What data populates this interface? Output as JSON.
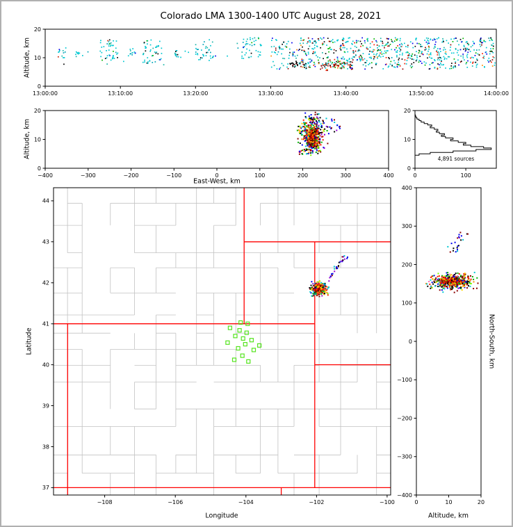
{
  "title": "Colorado LMA 1300-1400 UTC August 28, 2021",
  "labels": {
    "altitude_axis": "Altitude, km",
    "east_west_axis": "East-West, km",
    "latitude_axis": "Latitude",
    "longitude_axis": "Longitude",
    "north_south_axis": "North-South, km",
    "sources_count": "4,891 sources"
  },
  "colors": {
    "state_border": "#ff0000",
    "county_border": "#c2c2c2",
    "station": "#55e41e",
    "axis_frame": "#000000",
    "hist_line": "#000000",
    "background": "#ffffff",
    "figure_border": "#b0b0b0"
  },
  "palettes": {
    "time_early": [
      [
        "#00c8d2",
        0.6
      ],
      [
        "#00a4b8",
        0.14
      ],
      [
        "#19b5a8",
        0.1
      ],
      [
        "#000000",
        0.06
      ],
      [
        "#0000ee",
        0.04
      ],
      [
        "#00b400",
        0.04
      ],
      [
        "#cc2200",
        0.02
      ]
    ],
    "time_late": [
      [
        "#00c8d2",
        0.46
      ],
      [
        "#19b5a8",
        0.1
      ],
      [
        "#000000",
        0.13
      ],
      [
        "#ff1e00",
        0.07
      ],
      [
        "#8b0000",
        0.05
      ],
      [
        "#0000ee",
        0.07
      ],
      [
        "#00b400",
        0.08
      ],
      [
        "#ff8c00",
        0.04
      ]
    ],
    "time_hot": [
      [
        "#8b0000",
        0.3
      ],
      [
        "#ff1e00",
        0.26
      ],
      [
        "#000000",
        0.18
      ],
      [
        "#ff8c00",
        0.1
      ],
      [
        "#00c8d2",
        0.09
      ],
      [
        "#00b400",
        0.07
      ]
    ],
    "dark_mix": [
      [
        "#000000",
        0.62
      ],
      [
        "#8b0000",
        0.18
      ],
      [
        "#00c8d2",
        0.2
      ]
    ],
    "storm": [
      [
        "#ff1e00",
        0.13
      ],
      [
        "#8b0000",
        0.11
      ],
      [
        "#000000",
        0.14
      ],
      [
        "#00b400",
        0.13
      ],
      [
        "#7cfc00",
        0.04
      ],
      [
        "#ffd700",
        0.07
      ],
      [
        "#ff8c00",
        0.07
      ],
      [
        "#00c8d2",
        0.13
      ],
      [
        "#0000ee",
        0.11
      ],
      [
        "#9400d3",
        0.04
      ],
      [
        "#ff69b4",
        0.03
      ]
    ],
    "storm_core": [
      [
        "#8b0000",
        0.3
      ],
      [
        "#ff1e00",
        0.28
      ],
      [
        "#000000",
        0.13
      ],
      [
        "#ff8c00",
        0.11
      ],
      [
        "#ffd700",
        0.08
      ],
      [
        "#00b400",
        0.06
      ],
      [
        "#0000ee",
        0.04
      ]
    ],
    "streak": [
      [
        "#0000ee",
        0.34
      ],
      [
        "#000000",
        0.2
      ],
      [
        "#00c8d2",
        0.2
      ],
      [
        "#9400d3",
        0.16
      ],
      [
        "#8b0000",
        0.1
      ]
    ]
  },
  "chart_data": [
    {
      "id": "time_height",
      "type": "scatter",
      "seed": 11,
      "xlabel": "",
      "ylabel": "Altitude, km",
      "xlim": [
        0,
        3600
      ],
      "ylim": [
        0,
        20
      ],
      "xticks": [
        {
          "v": 0,
          "l": "13:00:00"
        },
        {
          "v": 600,
          "l": "13:10:00"
        },
        {
          "v": 1200,
          "l": "13:20:00"
        },
        {
          "v": 1800,
          "l": "13:30:00"
        },
        {
          "v": 2400,
          "l": "13:40:00"
        },
        {
          "v": 3000,
          "l": "13:50:00"
        },
        {
          "v": 3600,
          "l": "14:00:00"
        }
      ],
      "yticks": [
        {
          "v": 0,
          "l": "0"
        },
        {
          "v": 10,
          "l": "10"
        },
        {
          "v": 20,
          "l": "20"
        }
      ],
      "clusters": [
        {
          "n": 40,
          "x": {
            "dist": "u",
            "lo": 60,
            "hi": 3580
          },
          "y": {
            "dist": "u",
            "lo": 7,
            "hi": 16.5
          },
          "palette": "time_early"
        },
        {
          "n": 12,
          "x": {
            "dist": "u",
            "lo": 100,
            "hi": 170
          },
          "y": {
            "dist": "u",
            "lo": 10,
            "hi": 13.5
          },
          "palette": "time_early"
        },
        {
          "n": 9,
          "x": {
            "dist": "u",
            "lo": 240,
            "hi": 300
          },
          "y": {
            "dist": "u",
            "lo": 10,
            "hi": 12.5
          },
          "palette": "time_early"
        },
        {
          "n": 42,
          "x": {
            "dist": "u",
            "lo": 430,
            "hi": 580
          },
          "y": {
            "dist": "u",
            "lo": 9,
            "hi": 16.5
          },
          "palette": "time_early"
        },
        {
          "n": 12,
          "x": {
            "dist": "u",
            "lo": 660,
            "hi": 725
          },
          "y": {
            "dist": "u",
            "lo": 10.5,
            "hi": 13.2
          },
          "palette": "time_early"
        },
        {
          "n": 46,
          "x": {
            "dist": "u",
            "lo": 780,
            "hi": 935
          },
          "y": {
            "dist": "u",
            "lo": 8,
            "hi": 16.5
          },
          "palette": "time_early"
        },
        {
          "n": 12,
          "x": {
            "dist": "u",
            "lo": 1020,
            "hi": 1085
          },
          "y": {
            "dist": "u",
            "lo": 10,
            "hi": 12.6
          },
          "palette": "time_early"
        },
        {
          "n": 36,
          "x": {
            "dist": "u",
            "lo": 1200,
            "hi": 1345
          },
          "y": {
            "dist": "u",
            "lo": 9,
            "hi": 16.5
          },
          "palette": "time_early"
        },
        {
          "n": 42,
          "x": {
            "dist": "u",
            "lo": 1555,
            "hi": 1725
          },
          "y": {
            "dist": "u",
            "lo": 9.5,
            "hi": 17
          },
          "palette": "time_early"
        },
        {
          "n": 85,
          "x": {
            "dist": "u",
            "lo": 1800,
            "hi": 2100
          },
          "y": {
            "dist": "u",
            "lo": 6,
            "hi": 17
          },
          "palette": "time_late"
        },
        {
          "n": 30,
          "x": {
            "dist": "u",
            "lo": 1950,
            "hi": 2085
          },
          "y": {
            "dist": "n",
            "c": 7.6,
            "s": 0.7
          },
          "palette": "dark_mix"
        },
        {
          "n": 125,
          "x": {
            "dist": "u",
            "lo": 2100,
            "hi": 2400
          },
          "y": {
            "dist": "u",
            "lo": 6,
            "hi": 17
          },
          "palette": "time_late"
        },
        {
          "n": 70,
          "x": {
            "dist": "u",
            "lo": 2180,
            "hi": 2465
          },
          "y": {
            "dist": "n",
            "c": 7.4,
            "s": 0.9
          },
          "palette": "time_hot"
        },
        {
          "n": 135,
          "x": {
            "dist": "u",
            "lo": 2400,
            "hi": 2700
          },
          "y": {
            "dist": "u",
            "lo": 6,
            "hi": 17
          },
          "palette": "time_late"
        },
        {
          "n": 130,
          "x": {
            "dist": "u",
            "lo": 2700,
            "hi": 3000
          },
          "y": {
            "dist": "u",
            "lo": 6,
            "hi": 17
          },
          "palette": "time_late"
        },
        {
          "n": 128,
          "x": {
            "dist": "u",
            "lo": 3000,
            "hi": 3300
          },
          "y": {
            "dist": "u",
            "lo": 6,
            "hi": 17
          },
          "palette": "time_late"
        },
        {
          "n": 118,
          "x": {
            "dist": "u",
            "lo": 3300,
            "hi": 3592
          },
          "y": {
            "dist": "u",
            "lo": 6.5,
            "hi": 17
          },
          "palette": "time_late"
        }
      ]
    },
    {
      "id": "ew_height",
      "type": "scatter",
      "seed": 22,
      "xlabel": "East-West, km",
      "ylabel": "Altitude, km",
      "xlim": [
        -400,
        400
      ],
      "ylim": [
        0,
        20
      ],
      "xticks": [
        {
          "v": -400,
          "l": "−400"
        },
        {
          "v": -300,
          "l": "−300"
        },
        {
          "v": -200,
          "l": "−200"
        },
        {
          "v": -100,
          "l": "−100"
        },
        {
          "v": 0,
          "l": "0"
        },
        {
          "v": 100,
          "l": "100"
        },
        {
          "v": 200,
          "l": "200"
        },
        {
          "v": 300,
          "l": "300"
        },
        {
          "v": 400,
          "l": "400"
        }
      ],
      "yticks": [
        {
          "v": 0,
          "l": "0"
        },
        {
          "v": 10,
          "l": "10"
        },
        {
          "v": 20,
          "l": "20"
        }
      ],
      "clusters": [
        {
          "n": 330,
          "x": {
            "dist": "n",
            "c": 222,
            "s": 14
          },
          "y": {
            "dist": "n",
            "c": 11,
            "s": 2.9
          },
          "palette": "storm",
          "clip": {
            "x": [
              182,
              262
            ],
            "y": [
              4.5,
              17.6
            ]
          }
        },
        {
          "n": 270,
          "x": {
            "dist": "n",
            "c": 224,
            "s": 7
          },
          "y": {
            "dist": "n",
            "c": 10.4,
            "s": 1.9
          },
          "palette": "storm_core",
          "clip": {
            "x": [
              202,
              246
            ],
            "y": [
              6,
              14.6
            ]
          }
        },
        {
          "n": 40,
          "x": {
            "dist": "u",
            "lo": 198,
            "hi": 252
          },
          "y": {
            "dist": "u",
            "lo": 14,
            "hi": 17.6
          },
          "palette": "storm"
        },
        {
          "n": 26,
          "x": {
            "dist": "u",
            "lo": 236,
            "hi": 290
          },
          "y": {
            "dist": "u",
            "lo": 11.5,
            "hi": 17
          },
          "palette": "streak"
        },
        {
          "n": 9,
          "x": {
            "dist": "u",
            "lo": 206,
            "hi": 238
          },
          "y": {
            "dist": "u",
            "lo": 17.6,
            "hi": 19.4
          },
          "palette": "streak"
        },
        {
          "n": 14,
          "x": {
            "dist": "u",
            "lo": 188,
            "hi": 214
          },
          "y": {
            "dist": "u",
            "lo": 4.8,
            "hi": 7.2
          },
          "palette": "storm"
        }
      ]
    },
    {
      "id": "hist",
      "type": "histogram",
      "annotation": "4,891 sources",
      "xlim": [
        0,
        160
      ],
      "ylim": [
        0,
        20
      ],
      "xticks": [
        {
          "v": 0,
          "l": "0"
        },
        {
          "v": 100,
          "l": "100"
        }
      ],
      "yticks": [
        {
          "v": 0,
          "l": "0"
        },
        {
          "v": 10,
          "l": "10"
        },
        {
          "v": 20,
          "l": "20"
        }
      ],
      "bins": {
        "start": 0,
        "step": 0.5,
        "counts": [
          0,
          0,
          0,
          0,
          0,
          0,
          0,
          0,
          0,
          8,
          30,
          75,
          120,
          150,
          135,
          110,
          95,
          100,
          85,
          70,
          75,
          60,
          52,
          58,
          48,
          42,
          45,
          38,
          30,
          33,
          25,
          18,
          12,
          8,
          4,
          2,
          1,
          0,
          0,
          0
        ]
      }
    },
    {
      "id": "map",
      "type": "map",
      "seed": 33,
      "xlabel": "Longitude",
      "ylabel": "Latitude",
      "xlim": [
        -109.45,
        -99.9
      ],
      "ylim": [
        36.82,
        44.32
      ],
      "xticks": [
        {
          "v": -108,
          "l": "−108"
        },
        {
          "v": -106,
          "l": "−106"
        },
        {
          "v": -104,
          "l": "−104"
        },
        {
          "v": -102,
          "l": "−102"
        },
        {
          "v": -100,
          "l": "−100"
        }
      ],
      "yticks": [
        {
          "v": 37,
          "l": "37"
        },
        {
          "v": 38,
          "l": "38"
        },
        {
          "v": 39,
          "l": "39"
        },
        {
          "v": 40,
          "l": "40"
        },
        {
          "v": 41,
          "l": "41"
        },
        {
          "v": 42,
          "l": "42"
        },
        {
          "v": 43,
          "l": "43"
        },
        {
          "v": 44,
          "l": "44"
        }
      ],
      "county_grid": {
        "seed": 7,
        "lon_step": 0.6,
        "lat_step": 0.52,
        "edge_prob": 0.72
      },
      "state_lines": [
        [
          [
            -109.05,
            36.82
          ],
          [
            -109.05,
            41
          ]
        ],
        [
          [
            -109.45,
            41
          ],
          [
            -102.05,
            41
          ]
        ],
        [
          [
            -104.05,
            44.32
          ],
          [
            -104.05,
            41
          ]
        ],
        [
          [
            -104.05,
            43
          ],
          [
            -99.9,
            43
          ]
        ],
        [
          [
            -102.05,
            43
          ],
          [
            -102.05,
            37
          ]
        ],
        [
          [
            -102.05,
            40
          ],
          [
            -99.9,
            40
          ]
        ],
        [
          [
            -109.45,
            37
          ],
          [
            -99.9,
            37
          ]
        ],
        [
          [
            -103,
            37
          ],
          [
            -103,
            36.82
          ]
        ]
      ],
      "stations": [
        [
          -104.15,
          41.03
        ],
        [
          -103.95,
          41.0
        ],
        [
          -104.45,
          40.9
        ],
        [
          -104.18,
          40.84
        ],
        [
          -103.98,
          40.78
        ],
        [
          -104.3,
          40.7
        ],
        [
          -104.08,
          40.64
        ],
        [
          -103.84,
          40.6
        ],
        [
          -104.52,
          40.54
        ],
        [
          -104.02,
          40.5
        ],
        [
          -103.62,
          40.47
        ],
        [
          -104.22,
          40.4
        ],
        [
          -103.78,
          40.36
        ],
        [
          -104.1,
          40.22
        ],
        [
          -104.33,
          40.12
        ],
        [
          -103.93,
          40.08
        ]
      ],
      "clusters": [
        {
          "n": 270,
          "x": {
            "dist": "n",
            "c": -101.93,
            "s": 0.11
          },
          "y": {
            "dist": "n",
            "c": 41.85,
            "s": 0.075
          },
          "palette": "storm",
          "clip": {
            "x": [
              -102.2,
              -101.6
            ],
            "y": [
              41.62,
              42.06
            ]
          }
        },
        {
          "n": 190,
          "x": {
            "dist": "n",
            "c": -101.94,
            "s": 0.06
          },
          "y": {
            "dist": "n",
            "c": 41.86,
            "s": 0.045
          },
          "palette": "storm_core"
        },
        {
          "n": 26,
          "line": {
            "x0": -101.76,
            "y0": 41.98,
            "x1": -101.22,
            "y1": 42.62,
            "jx": 0.03,
            "jy": 0.03
          },
          "palette": "streak"
        },
        {
          "n": 4,
          "x": {
            "dist": "u",
            "lo": -101.3,
            "hi": -101.12
          },
          "y": {
            "dist": "u",
            "lo": 42.55,
            "hi": 42.72
          },
          "palette": "streak"
        }
      ]
    },
    {
      "id": "ns_height",
      "type": "scatter",
      "seed": 44,
      "xlabel": "Altitude, km",
      "ylabel": "North-South, km",
      "xlim": [
        0,
        20
      ],
      "ylim": [
        -400,
        400
      ],
      "xticks": [
        {
          "v": 0,
          "l": "0"
        },
        {
          "v": 10,
          "l": "10"
        },
        {
          "v": 20,
          "l": "20"
        }
      ],
      "yticks": [
        {
          "v": 400,
          "l": "400"
        },
        {
          "v": 300,
          "l": "300"
        },
        {
          "v": 200,
          "l": "200"
        },
        {
          "v": 100,
          "l": "100"
        },
        {
          "v": 0,
          "l": "0"
        },
        {
          "v": -100,
          "l": "−100"
        },
        {
          "v": -200,
          "l": "−200"
        },
        {
          "v": -300,
          "l": "−300"
        },
        {
          "v": -400,
          "l": "−400"
        }
      ],
      "clusters": [
        {
          "n": 310,
          "x": {
            "dist": "n",
            "c": 11,
            "s": 3.4
          },
          "y": {
            "dist": "n",
            "c": 155,
            "s": 11
          },
          "palette": "storm",
          "clip": {
            "x": [
              3,
              19.2
            ],
            "y": [
              126,
              182
            ]
          }
        },
        {
          "n": 230,
          "x": {
            "dist": "n",
            "c": 11,
            "s": 2.3
          },
          "y": {
            "dist": "n",
            "c": 156,
            "s": 6.5
          },
          "palette": "storm_core",
          "clip": {
            "x": [
              4.5,
              16.5
            ],
            "y": [
              138,
              173
            ]
          }
        },
        {
          "n": 22,
          "line": {
            "x0": 10.5,
            "y0": 228,
            "x1": 15.5,
            "y1": 283,
            "jx": 1.2,
            "jy": 5
          },
          "palette": "streak"
        }
      ]
    }
  ]
}
